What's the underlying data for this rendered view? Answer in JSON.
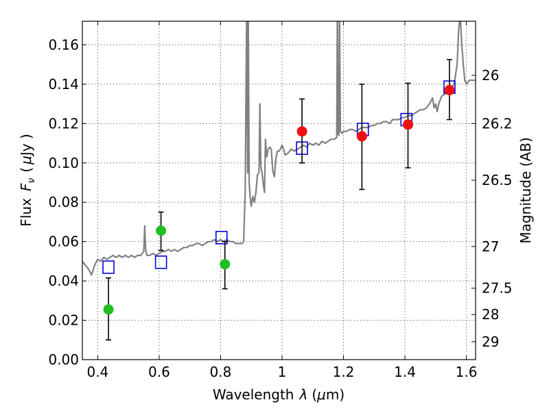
{
  "chart_data": {
    "type": "scatter",
    "xlabel_prefix": "Wavelength",
    "xlabel_symbol": "λ",
    "xlabel_unit_open": "(",
    "xlabel_unit_mu": "μ",
    "xlabel_unit_rest": "m)",
    "ylabel_prefix": "Flux",
    "ylabel_symbol": "F",
    "ylabel_subscript": "ν",
    "ylabel_unit_open": "(",
    "ylabel_unit_mu": "μ",
    "ylabel_unit_rest": "Jy )",
    "y2label": "Magnitude (AB)",
    "xlim": [
      0.35,
      1.63
    ],
    "ylim": [
      0.0,
      0.172
    ],
    "grid": true,
    "x_ticks": [
      {
        "value": 0.4,
        "label": "0.4"
      },
      {
        "value": 0.6,
        "label": "0.6"
      },
      {
        "value": 0.8,
        "label": "0.8"
      },
      {
        "value": 1.0,
        "label": "1"
      },
      {
        "value": 1.2,
        "label": "1.2"
      },
      {
        "value": 1.4,
        "label": "1.4"
      },
      {
        "value": 1.6,
        "label": "1.6"
      }
    ],
    "y_ticks": [
      {
        "value": 0.0,
        "label": "0.00"
      },
      {
        "value": 0.02,
        "label": "0.02"
      },
      {
        "value": 0.04,
        "label": "0.04"
      },
      {
        "value": 0.06,
        "label": "0.06"
      },
      {
        "value": 0.08,
        "label": "0.08"
      },
      {
        "value": 0.1,
        "label": "0.10"
      },
      {
        "value": 0.12,
        "label": "0.12"
      },
      {
        "value": 0.14,
        "label": "0.14"
      },
      {
        "value": 0.16,
        "label": "0.16"
      }
    ],
    "mag_ticks": [
      {
        "flux": 0.1445,
        "label": "26"
      },
      {
        "flux": 0.12,
        "label": "26.2"
      },
      {
        "flux": 0.0912,
        "label": "26.5"
      },
      {
        "flux": 0.0575,
        "label": "27"
      },
      {
        "flux": 0.0363,
        "label": "27.5"
      },
      {
        "flux": 0.0229,
        "label": "28"
      },
      {
        "flux": 0.0091,
        "label": "29"
      }
    ],
    "green_points": [
      {
        "x": 0.435,
        "y": 0.0255,
        "err_lo": 0.0155,
        "err_hi": 0.016
      },
      {
        "x": 0.606,
        "y": 0.0655,
        "err_lo": 0.01,
        "err_hi": 0.0095
      },
      {
        "x": 0.814,
        "y": 0.0485,
        "err_lo": 0.0125,
        "err_hi": 0.0115
      }
    ],
    "red_points": [
      {
        "x": 1.065,
        "y": 0.116,
        "err_lo": 0.016,
        "err_hi": 0.0165
      },
      {
        "x": 1.26,
        "y": 0.1135,
        "err_lo": 0.027,
        "err_hi": 0.0265
      },
      {
        "x": 1.41,
        "y": 0.1195,
        "err_lo": 0.022,
        "err_hi": 0.021
      },
      {
        "x": 1.545,
        "y": 0.137,
        "err_lo": 0.015,
        "err_hi": 0.0155
      }
    ],
    "model_boxes": [
      {
        "x": 0.435,
        "y": 0.047
      },
      {
        "x": 0.606,
        "y": 0.0495
      },
      {
        "x": 0.803,
        "y": 0.062
      },
      {
        "x": 1.065,
        "y": 0.1075
      },
      {
        "x": 1.263,
        "y": 0.117
      },
      {
        "x": 1.405,
        "y": 0.122
      },
      {
        "x": 1.545,
        "y": 0.1385
      }
    ],
    "model_spectrum": [
      [
        0.35,
        0.05
      ],
      [
        0.36,
        0.048
      ],
      [
        0.37,
        0.046
      ],
      [
        0.38,
        0.043
      ],
      [
        0.39,
        0.048
      ],
      [
        0.4,
        0.051
      ],
      [
        0.41,
        0.05
      ],
      [
        0.42,
        0.052
      ],
      [
        0.43,
        0.051
      ],
      [
        0.44,
        0.052
      ],
      [
        0.45,
        0.053
      ],
      [
        0.46,
        0.052
      ],
      [
        0.47,
        0.053
      ],
      [
        0.48,
        0.052
      ],
      [
        0.49,
        0.053
      ],
      [
        0.5,
        0.052
      ],
      [
        0.51,
        0.053
      ],
      [
        0.52,
        0.052
      ],
      [
        0.53,
        0.053
      ],
      [
        0.54,
        0.053
      ],
      [
        0.55,
        0.055
      ],
      [
        0.553,
        0.068
      ],
      [
        0.556,
        0.056
      ],
      [
        0.56,
        0.053
      ],
      [
        0.57,
        0.053
      ],
      [
        0.58,
        0.054
      ],
      [
        0.59,
        0.053
      ],
      [
        0.6,
        0.054
      ],
      [
        0.61,
        0.055
      ],
      [
        0.62,
        0.055
      ],
      [
        0.63,
        0.056
      ],
      [
        0.64,
        0.055
      ],
      [
        0.65,
        0.056
      ],
      [
        0.66,
        0.055
      ],
      [
        0.67,
        0.056
      ],
      [
        0.68,
        0.057
      ],
      [
        0.69,
        0.057
      ],
      [
        0.7,
        0.058
      ],
      [
        0.71,
        0.058
      ],
      [
        0.72,
        0.059
      ],
      [
        0.73,
        0.059
      ],
      [
        0.74,
        0.058
      ],
      [
        0.75,
        0.059
      ],
      [
        0.76,
        0.06
      ],
      [
        0.77,
        0.06
      ],
      [
        0.78,
        0.061
      ],
      [
        0.79,
        0.06
      ],
      [
        0.8,
        0.061
      ],
      [
        0.81,
        0.06
      ],
      [
        0.82,
        0.061
      ],
      [
        0.83,
        0.06
      ],
      [
        0.84,
        0.06
      ],
      [
        0.85,
        0.059
      ],
      [
        0.86,
        0.059
      ],
      [
        0.87,
        0.059
      ],
      [
        0.875,
        0.06
      ],
      [
        0.88,
        0.085
      ],
      [
        0.885,
        0.18
      ],
      [
        0.888,
        0.095
      ],
      [
        0.89,
        0.18
      ],
      [
        0.893,
        0.09
      ],
      [
        0.896,
        0.083
      ],
      [
        0.9,
        0.078
      ],
      [
        0.905,
        0.083
      ],
      [
        0.91,
        0.08
      ],
      [
        0.915,
        0.085
      ],
      [
        0.92,
        0.094
      ],
      [
        0.925,
        0.095
      ],
      [
        0.928,
        0.13
      ],
      [
        0.931,
        0.098
      ],
      [
        0.935,
        0.095
      ],
      [
        0.94,
        0.088
      ],
      [
        0.943,
        0.085
      ],
      [
        0.946,
        0.112
      ],
      [
        0.95,
        0.103
      ],
      [
        0.955,
        0.107
      ],
      [
        0.96,
        0.108
      ],
      [
        0.965,
        0.107
      ],
      [
        0.97,
        0.096
      ],
      [
        0.975,
        0.093
      ],
      [
        0.98,
        0.102
      ],
      [
        0.985,
        0.106
      ],
      [
        0.99,
        0.106
      ],
      [
        0.995,
        0.107
      ],
      [
        1.0,
        0.109
      ],
      [
        1.005,
        0.107
      ],
      [
        1.01,
        0.104
      ],
      [
        1.02,
        0.105
      ],
      [
        1.03,
        0.107
      ],
      [
        1.04,
        0.106
      ],
      [
        1.05,
        0.107
      ],
      [
        1.06,
        0.108
      ],
      [
        1.07,
        0.109
      ],
      [
        1.08,
        0.108
      ],
      [
        1.09,
        0.11
      ],
      [
        1.1,
        0.109
      ],
      [
        1.11,
        0.11
      ],
      [
        1.12,
        0.109
      ],
      [
        1.13,
        0.111
      ],
      [
        1.14,
        0.11
      ],
      [
        1.15,
        0.111
      ],
      [
        1.16,
        0.112
      ],
      [
        1.17,
        0.112
      ],
      [
        1.178,
        0.113
      ],
      [
        1.18,
        0.18
      ],
      [
        1.182,
        0.115
      ],
      [
        1.185,
        0.114
      ],
      [
        1.187,
        0.18
      ],
      [
        1.19,
        0.116
      ],
      [
        1.195,
        0.115
      ],
      [
        1.2,
        0.116
      ],
      [
        1.21,
        0.116
      ],
      [
        1.22,
        0.117
      ],
      [
        1.23,
        0.117
      ],
      [
        1.24,
        0.116
      ],
      [
        1.25,
        0.117
      ],
      [
        1.26,
        0.118
      ],
      [
        1.27,
        0.118
      ],
      [
        1.28,
        0.118
      ],
      [
        1.29,
        0.119
      ],
      [
        1.3,
        0.119
      ],
      [
        1.31,
        0.12
      ],
      [
        1.32,
        0.12
      ],
      [
        1.33,
        0.121
      ],
      [
        1.34,
        0.121
      ],
      [
        1.35,
        0.12
      ],
      [
        1.36,
        0.122
      ],
      [
        1.37,
        0.122
      ],
      [
        1.38,
        0.122
      ],
      [
        1.39,
        0.123
      ],
      [
        1.4,
        0.123
      ],
      [
        1.41,
        0.124
      ],
      [
        1.42,
        0.124
      ],
      [
        1.43,
        0.125
      ],
      [
        1.44,
        0.126
      ],
      [
        1.45,
        0.127
      ],
      [
        1.46,
        0.127
      ],
      [
        1.47,
        0.128
      ],
      [
        1.48,
        0.13
      ],
      [
        1.49,
        0.133
      ],
      [
        1.495,
        0.128
      ],
      [
        1.5,
        0.13
      ],
      [
        1.505,
        0.126
      ],
      [
        1.51,
        0.13
      ],
      [
        1.515,
        0.132
      ],
      [
        1.52,
        0.134
      ],
      [
        1.53,
        0.135
      ],
      [
        1.54,
        0.136
      ],
      [
        1.55,
        0.138
      ],
      [
        1.56,
        0.14
      ],
      [
        1.565,
        0.145
      ],
      [
        1.57,
        0.15
      ],
      [
        1.575,
        0.168
      ],
      [
        1.58,
        0.175
      ],
      [
        1.585,
        0.16
      ],
      [
        1.59,
        0.15
      ],
      [
        1.595,
        0.142
      ],
      [
        1.6,
        0.14
      ],
      [
        1.61,
        0.142
      ],
      [
        1.62,
        0.142
      ],
      [
        1.63,
        0.142
      ]
    ]
  }
}
